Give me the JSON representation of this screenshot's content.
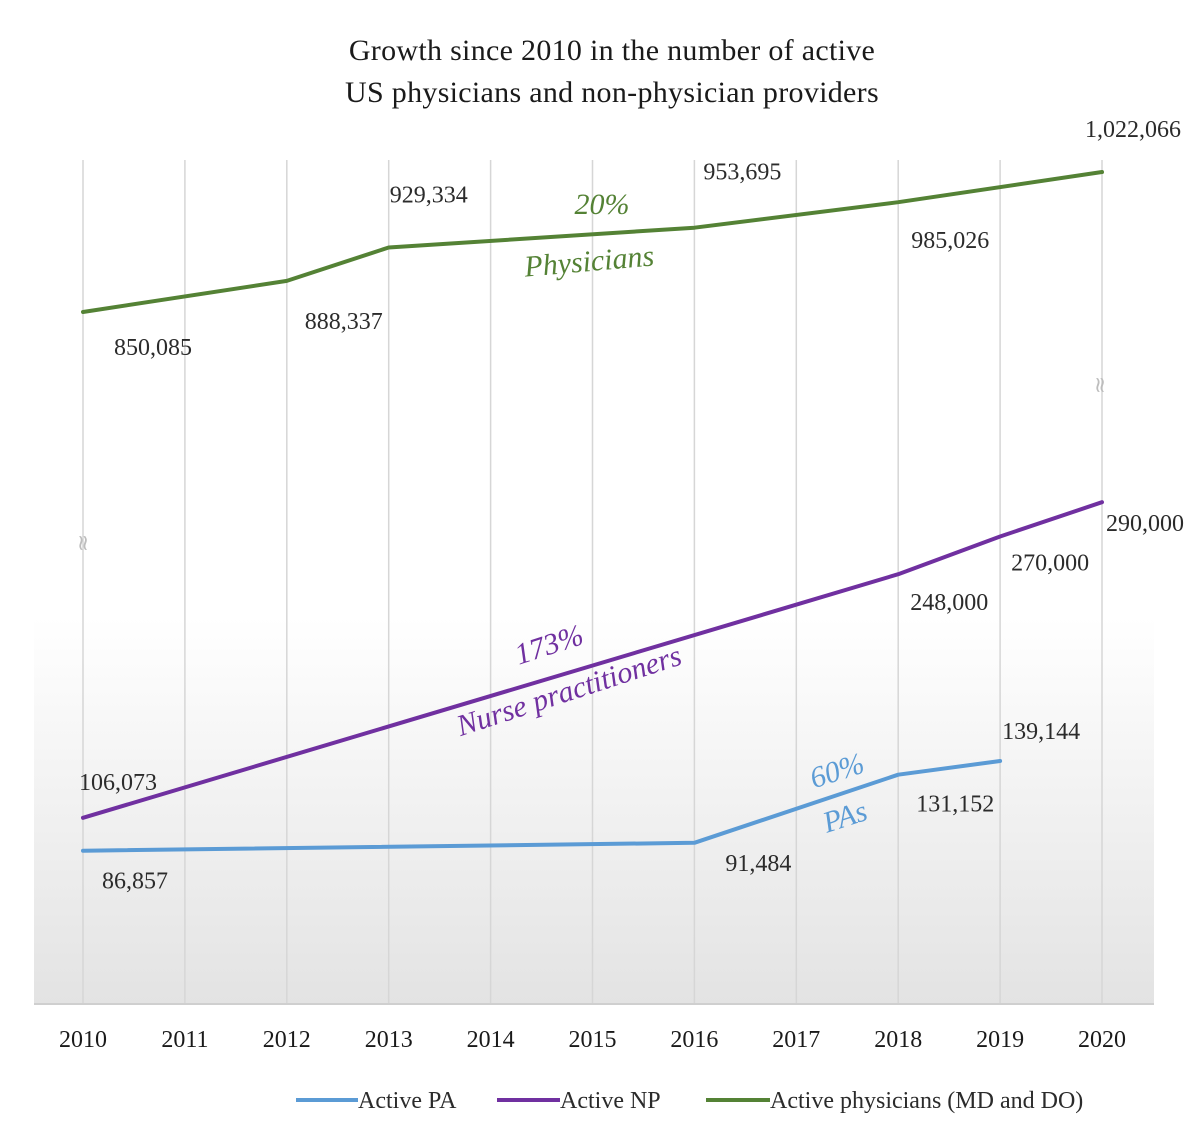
{
  "chart_data": {
    "type": "line",
    "title": "Growth since 2010 in the number of active US physicians and non-physician providers",
    "title_lines": [
      "Growth since 2010 in the number of active",
      "US physicians and non-physician providers"
    ],
    "xlabel": "",
    "ylabel": "",
    "categories": [
      "2010",
      "2011",
      "2012",
      "2013",
      "2014",
      "2015",
      "2016",
      "2017",
      "2018",
      "2019",
      "2020"
    ],
    "series": [
      {
        "name": "Active PA",
        "color": "#5B9BD5",
        "x": [
          "2010",
          "2016",
          "2018",
          "2019"
        ],
        "values": [
          86857,
          91484,
          131152,
          139144
        ],
        "labels": [
          "86,857",
          "91,484",
          "131,152",
          "139,144"
        ],
        "growth": "60%",
        "annotation": "PAs"
      },
      {
        "name": "Active NP",
        "color": "#7030A0",
        "x": [
          "2010",
          "2018",
          "2019",
          "2020"
        ],
        "values": [
          106073,
          248000,
          270000,
          290000
        ],
        "labels": [
          "106,073",
          "248,000",
          "270,000",
          "290,000"
        ],
        "growth": "173%",
        "annotation": "Nurse practitioners"
      },
      {
        "name": "Active physicians (MD and DO)",
        "color": "#548235",
        "x": [
          "2010",
          "2012",
          "2013",
          "2016",
          "2018",
          "2020"
        ],
        "values": [
          850085,
          888337,
          929334,
          953695,
          985026,
          1022066
        ],
        "labels": [
          "850,085",
          "888,337",
          "929,334",
          "953,695",
          "985,026",
          "1,022,066"
        ],
        "growth": "20%",
        "annotation": "Physicians"
      }
    ],
    "axis_breaks": [
      "≈",
      "≈"
    ],
    "ranges": {
      "lower": [
        80000,
        300000
      ],
      "upper": [
        840000,
        1040000
      ]
    },
    "grid": true,
    "legend": "bottom"
  }
}
